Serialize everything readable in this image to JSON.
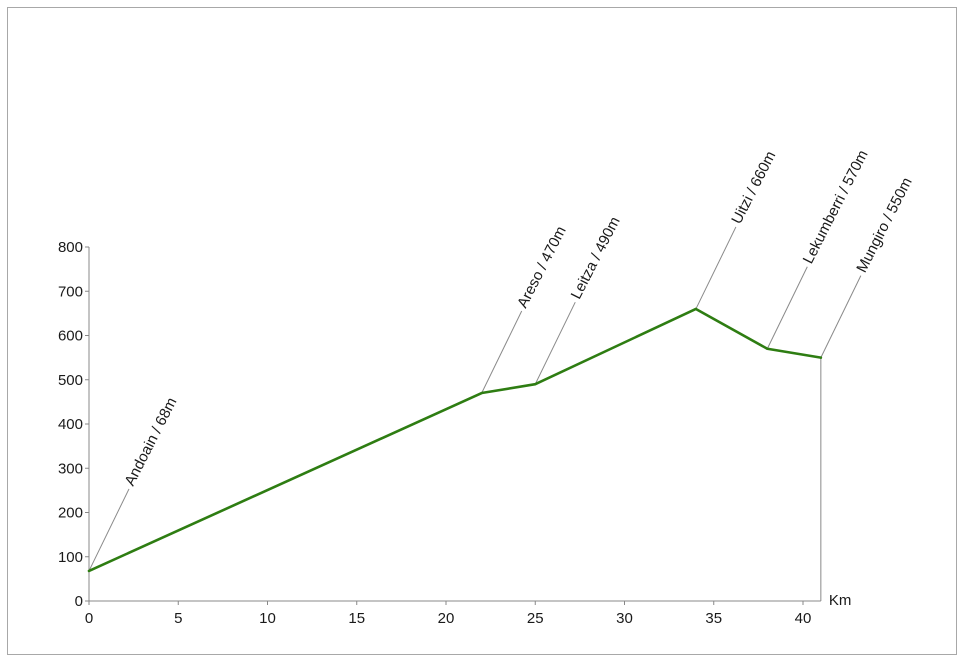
{
  "chart_data": {
    "type": "line",
    "title": "",
    "xlabel": "Km",
    "ylabel": "",
    "xlim": [
      0,
      41
    ],
    "ylim": [
      0,
      800
    ],
    "x_ticks": [
      0,
      5,
      10,
      15,
      20,
      25,
      30,
      35,
      40
    ],
    "y_ticks": [
      0,
      100,
      200,
      300,
      400,
      500,
      600,
      700,
      800
    ],
    "grid": false,
    "legend": "none",
    "line_color": "#2e7d12",
    "series": [
      {
        "x": [
          0,
          22,
          25,
          34,
          38,
          41
        ],
        "y": [
          68,
          470,
          490,
          660,
          570,
          550
        ]
      }
    ],
    "annotations": [
      {
        "label": "Andoain / 68m",
        "x": 0,
        "y": 68
      },
      {
        "label": "Areso / 470m",
        "x": 22,
        "y": 470
      },
      {
        "label": "Leitza / 490m",
        "x": 25,
        "y": 490
      },
      {
        "label": "Uitzi / 660m",
        "x": 34,
        "y": 660
      },
      {
        "label": "Lekumberri / 570m",
        "x": 38,
        "y": 570
      },
      {
        "label": "Mungiro / 550m",
        "x": 41,
        "y": 550
      }
    ]
  }
}
